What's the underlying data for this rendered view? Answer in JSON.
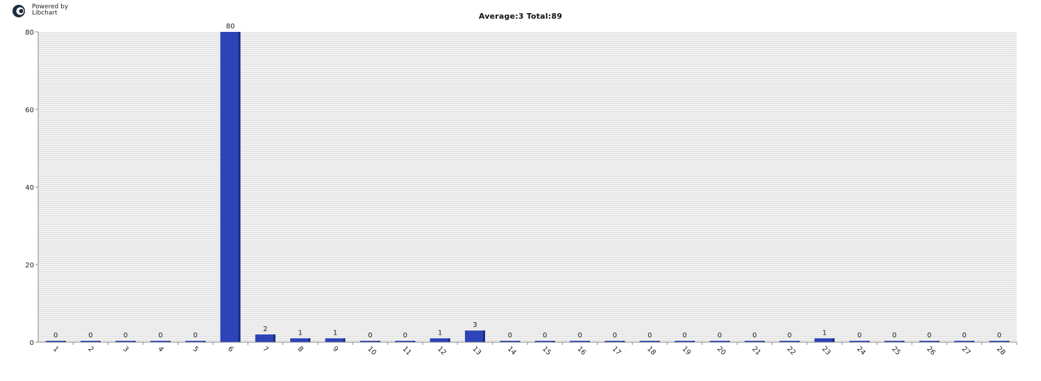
{
  "logo": {
    "icon": "libchart-logo-icon",
    "line1": "Powered by",
    "line2": "Libchart"
  },
  "chart_data": {
    "type": "bar",
    "title": "Average:3   Total:89",
    "xlabel": "",
    "ylabel": "",
    "categories": [
      "1",
      "2",
      "3",
      "4",
      "5",
      "6",
      "7",
      "8",
      "9",
      "10",
      "11",
      "12",
      "13",
      "14",
      "15",
      "16",
      "17",
      "18",
      "19",
      "20",
      "21",
      "22",
      "23",
      "24",
      "25",
      "26",
      "27",
      "28"
    ],
    "values": [
      0,
      0,
      0,
      0,
      0,
      80,
      2,
      1,
      1,
      0,
      0,
      1,
      3,
      0,
      0,
      0,
      0,
      0,
      0,
      0,
      0,
      0,
      1,
      0,
      0,
      0,
      0,
      0
    ],
    "ylim": [
      0,
      80
    ],
    "yticks": [
      0,
      20,
      40,
      60,
      80
    ],
    "grid": true,
    "colors": {
      "bar": "#2c44b8",
      "bar_edge": "#1a2a80",
      "grid_bg": "#eeeeee",
      "grid_line": "#d8d8d8",
      "axis": "#888888"
    }
  }
}
